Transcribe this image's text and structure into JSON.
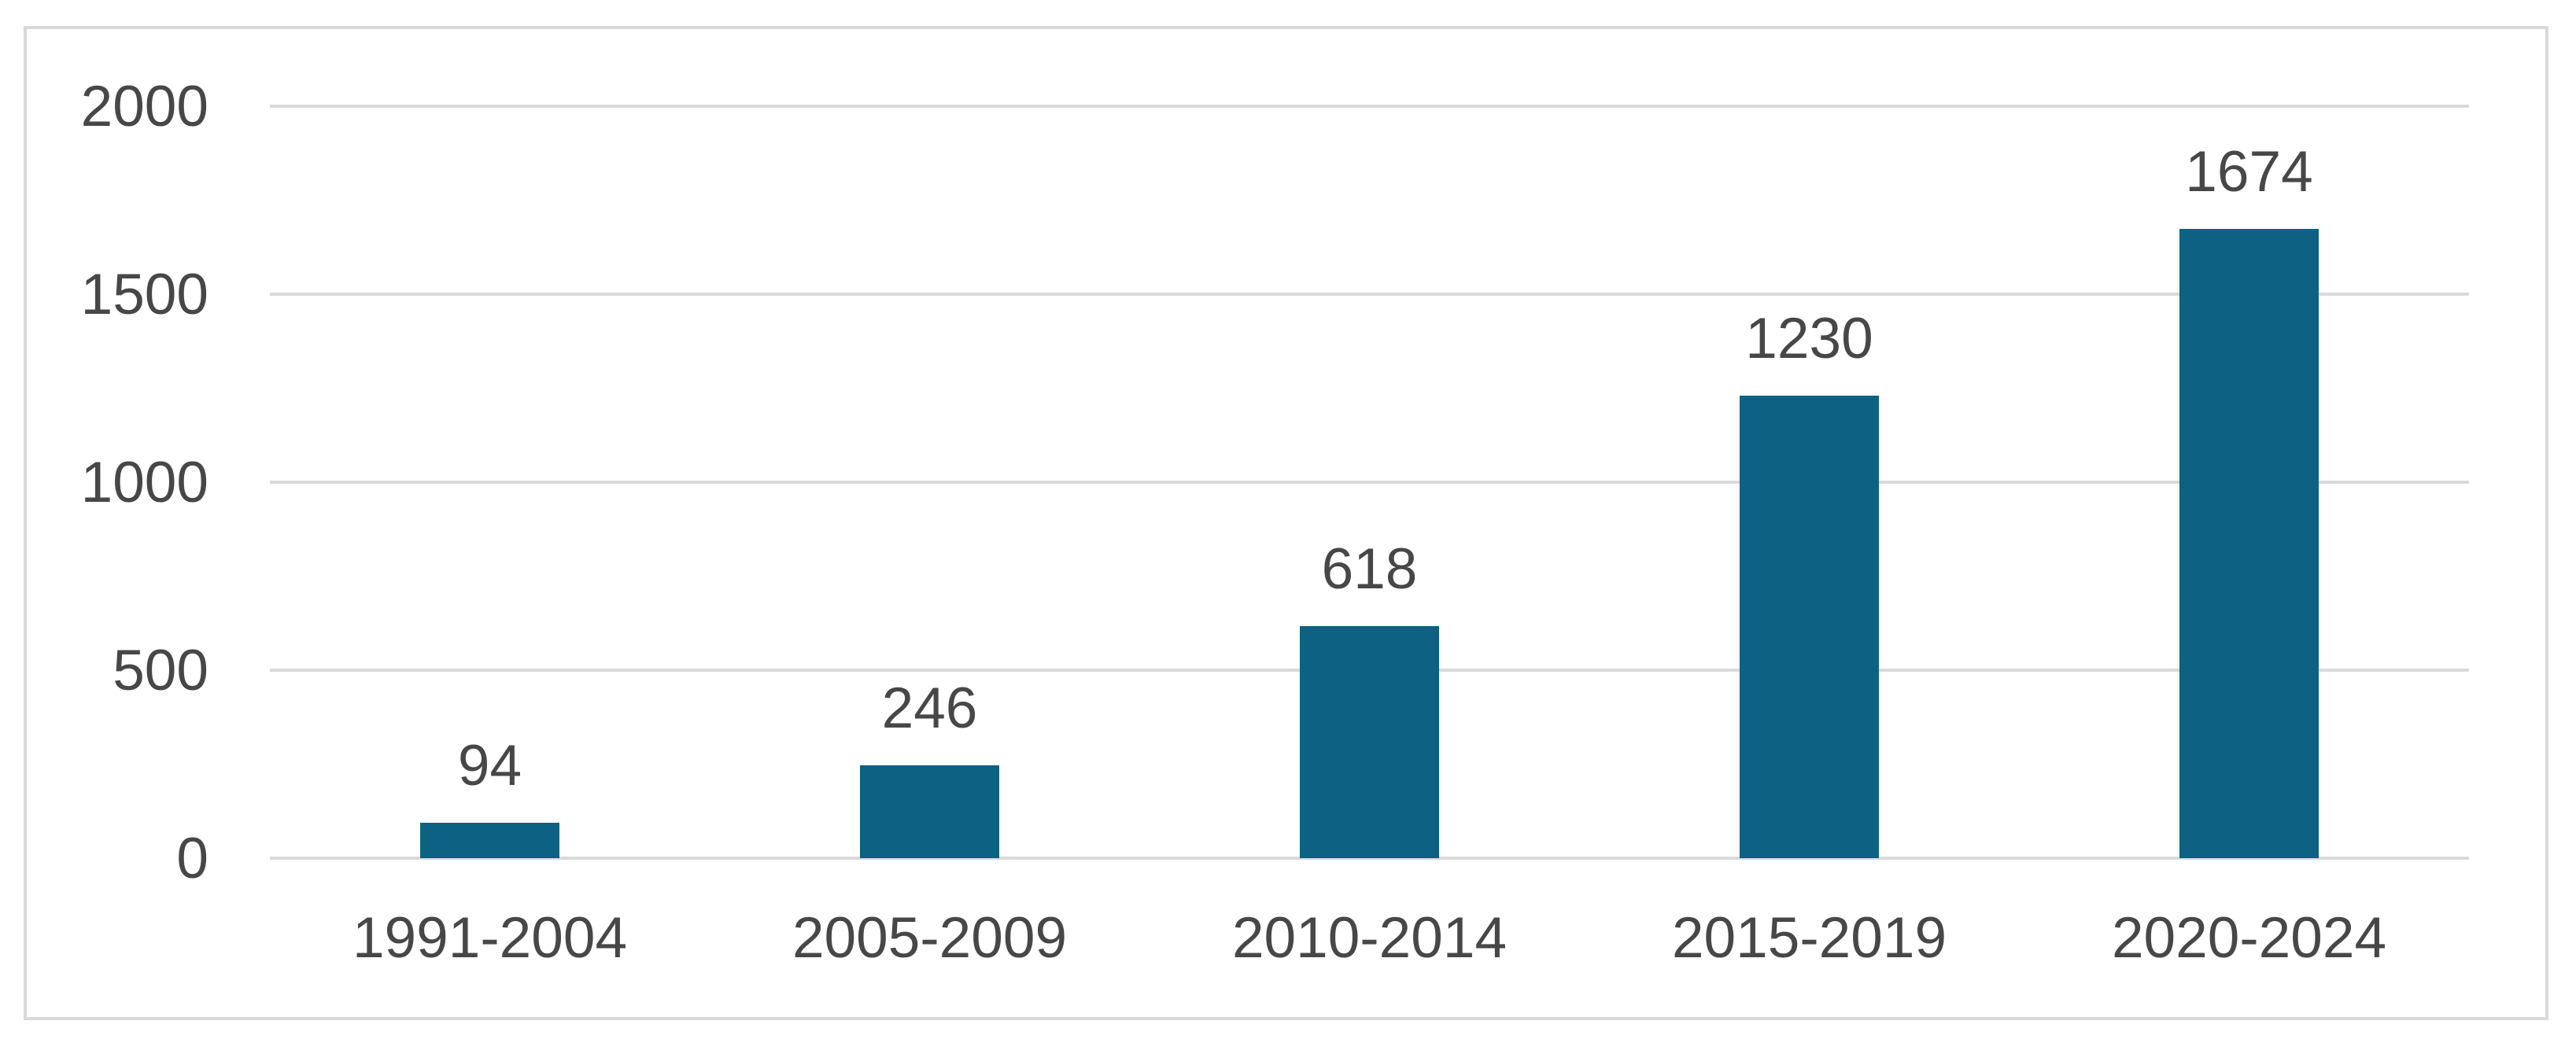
{
  "chart_data": {
    "type": "bar",
    "categories": [
      "1991-2004",
      "2005-2009",
      "2010-2014",
      "2015-2019",
      "2020-2024"
    ],
    "values": [
      94,
      246,
      618,
      1230,
      1674
    ],
    "data_labels": [
      "94",
      "246",
      "618",
      "1230",
      "1674"
    ],
    "title": "",
    "xlabel": "",
    "ylabel": "",
    "ylim": [
      0,
      2000
    ],
    "yticks": [
      0,
      500,
      1000,
      1500,
      2000
    ],
    "ytick_labels": [
      "0",
      "500",
      "1000",
      "1500",
      "2000"
    ],
    "grid": true,
    "legend": false,
    "colors": {
      "bar": "#0D6183",
      "gridline": "#D9D9D9",
      "axis_line": "#D9D9D9",
      "frame_border": "#D9D9D9",
      "label_text": "#474747",
      "background": "#FFFFFF"
    }
  }
}
